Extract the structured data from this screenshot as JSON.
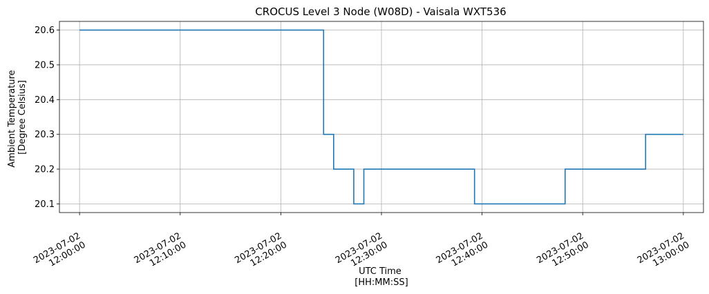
{
  "chart_data": {
    "type": "line",
    "step": "post",
    "title": "CROCUS Level 3 Node (W08D) - Vaisala WXT536",
    "xlabel": [
      "UTC Time",
      "[HH:MM:SS]"
    ],
    "ylabel": [
      "Ambient Temperature",
      "[Degree Celsius]"
    ],
    "xlim": [
      "2023-07-02 11:58:00",
      "2023-07-02 13:02:00"
    ],
    "ylim": [
      20.075,
      20.625
    ],
    "grid": true,
    "color": "#1f77b4",
    "x_ticks": [
      {
        "t": "2023-07-02 12:00:00",
        "lines": [
          "2023-07-02",
          "12:00:00"
        ]
      },
      {
        "t": "2023-07-02 12:10:00",
        "lines": [
          "2023-07-02",
          "12:10:00"
        ]
      },
      {
        "t": "2023-07-02 12:20:00",
        "lines": [
          "2023-07-02",
          "12:20:00"
        ]
      },
      {
        "t": "2023-07-02 12:30:00",
        "lines": [
          "2023-07-02",
          "12:30:00"
        ]
      },
      {
        "t": "2023-07-02 12:40:00",
        "lines": [
          "2023-07-02",
          "12:40:00"
        ]
      },
      {
        "t": "2023-07-02 12:50:00",
        "lines": [
          "2023-07-02",
          "12:50:00"
        ]
      },
      {
        "t": "2023-07-02 13:00:00",
        "lines": [
          "2023-07-02",
          "13:00:00"
        ]
      }
    ],
    "y_ticks": [
      20.1,
      20.2,
      20.3,
      20.4,
      20.5,
      20.6
    ],
    "series": [
      {
        "x": [
          "2023-07-02 12:00:00",
          "2023-07-02 12:24:15",
          "2023-07-02 12:25:15",
          "2023-07-02 12:27:15",
          "2023-07-02 12:28:15",
          "2023-07-02 12:39:15",
          "2023-07-02 12:48:15",
          "2023-07-02 12:56:15",
          "2023-07-02 13:00:00"
        ],
        "y": [
          20.6,
          20.3,
          20.2,
          20.1,
          20.2,
          20.1,
          20.2,
          20.3,
          20.3
        ]
      }
    ]
  }
}
